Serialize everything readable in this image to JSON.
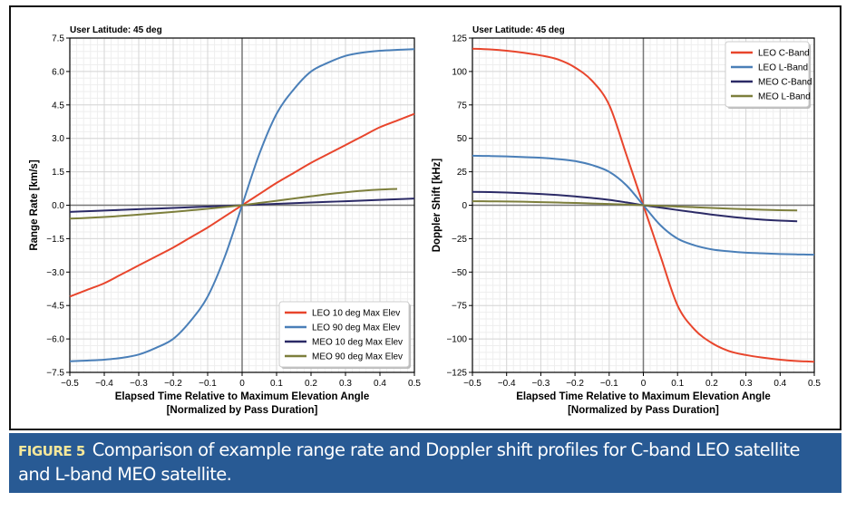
{
  "chart_data": [
    {
      "type": "line",
      "title": "User Latitude: 45 deg",
      "xlabel": "Elapsed Time Relative to Maximum Elevation Angle",
      "xlabel2": "[Normalized by Pass Duration]",
      "ylabel": "Range Rate [km/s]",
      "xlim": [
        -0.5,
        0.5
      ],
      "ylim": [
        -7.5,
        7.5
      ],
      "xticks": [
        "−0.5",
        "−0.4",
        "−0.3",
        "−0.2",
        "−0.1",
        "0",
        "0.1",
        "0.2",
        "0.3",
        "0.4",
        "0.5"
      ],
      "yticks": [
        "7.5",
        "6.0",
        "4.5",
        "3.0",
        "1.5",
        "0.0",
        "−1.5",
        "−3.0",
        "−4.5",
        "−6.0",
        "−7.5"
      ],
      "grid": true,
      "legend_position": "bottom-right",
      "x": [
        -0.5,
        -0.45,
        -0.4,
        -0.35,
        -0.3,
        -0.25,
        -0.2,
        -0.15,
        -0.1,
        -0.05,
        0,
        0.05,
        0.1,
        0.15,
        0.2,
        0.25,
        0.3,
        0.35,
        0.4,
        0.45,
        0.5
      ],
      "series": [
        {
          "name": "LEO  10 deg Max Elev",
          "color": "#e8452c",
          "values": [
            -4.1,
            -3.8,
            -3.5,
            -3.1,
            -2.7,
            -2.3,
            -1.9,
            -1.45,
            -1.0,
            -0.5,
            0,
            0.5,
            1.0,
            1.45,
            1.9,
            2.3,
            2.7,
            3.1,
            3.5,
            3.8,
            4.1
          ]
        },
        {
          "name": "LEO  90 deg Max Elev",
          "color": "#4a7fb8",
          "values": [
            -7.0,
            -6.97,
            -6.93,
            -6.85,
            -6.7,
            -6.4,
            -6.0,
            -5.2,
            -4.1,
            -2.3,
            0,
            2.3,
            4.1,
            5.2,
            6.0,
            6.4,
            6.7,
            6.85,
            6.93,
            6.97,
            7.0
          ]
        },
        {
          "name": "MEO 10 deg Max Elev",
          "color": "#2b2a66",
          "values": [
            -0.3,
            -0.27,
            -0.24,
            -0.21,
            -0.18,
            -0.15,
            -0.12,
            -0.09,
            -0.06,
            -0.03,
            0,
            0.03,
            0.06,
            0.09,
            0.12,
            0.15,
            0.18,
            0.21,
            0.24,
            0.27,
            0.3
          ]
        },
        {
          "name": "MEO 90 deg Max Elev",
          "color": "#7d7f3c",
          "values": [
            -0.6,
            -0.57,
            -0.53,
            -0.48,
            -0.42,
            -0.36,
            -0.3,
            -0.23,
            -0.16,
            -0.08,
            0,
            0.1,
            0.2,
            0.3,
            0.4,
            0.5,
            0.58,
            0.65,
            0.7,
            0.73,
            null
          ]
        }
      ]
    },
    {
      "type": "line",
      "title": "User Latitude: 45 deg",
      "xlabel": "Elapsed Time Relative to Maximum Elevation Angle",
      "xlabel2": "[Normalized by Pass Duration]",
      "ylabel": "Doppler Shift [kHz]",
      "xlim": [
        -0.5,
        0.5
      ],
      "ylim": [
        -125,
        125
      ],
      "xticks": [
        "−0.5",
        "−0.4",
        "−0.3",
        "−0.2",
        "−0.1",
        "0",
        "0.1",
        "0.2",
        "0.3",
        "0.4",
        "0.5"
      ],
      "yticks": [
        "125",
        "100",
        "75",
        "50",
        "25",
        "0",
        "−25",
        "−50",
        "−75",
        "−100",
        "−125"
      ],
      "grid": true,
      "legend_position": "top-right",
      "x": [
        -0.5,
        -0.45,
        -0.4,
        -0.35,
        -0.3,
        -0.25,
        -0.2,
        -0.15,
        -0.1,
        -0.05,
        0,
        0.05,
        0.1,
        0.15,
        0.2,
        0.25,
        0.3,
        0.35,
        0.4,
        0.45,
        0.5
      ],
      "series": [
        {
          "name": "LEO C-Band",
          "color": "#e8452c",
          "values": [
            117,
            116.5,
            115.5,
            114,
            112,
            109,
            103,
            93,
            75,
            38,
            0,
            -38,
            -75,
            -93,
            -103,
            -109,
            -112,
            -114,
            -115.5,
            -116.5,
            -117
          ]
        },
        {
          "name": "LEO L-Band",
          "color": "#4a7fb8",
          "values": [
            37,
            36.8,
            36.5,
            36,
            35.5,
            34.5,
            33,
            30,
            25,
            15,
            0,
            -15,
            -25,
            -30,
            -33,
            -34.5,
            -35.5,
            -36,
            -36.5,
            -36.8,
            -37
          ]
        },
        {
          "name": "MEO C-Band",
          "color": "#2b2a66",
          "values": [
            10,
            9.8,
            9.5,
            9,
            8.4,
            7.6,
            6.6,
            5.4,
            4,
            2.1,
            0,
            -1.8,
            -3.6,
            -5.3,
            -7,
            -8.5,
            -9.8,
            -10.8,
            -11.5,
            -12,
            null
          ]
        },
        {
          "name": "MEO L-Band",
          "color": "#7d7f3c",
          "values": [
            3,
            2.9,
            2.8,
            2.6,
            2.3,
            2,
            1.7,
            1.3,
            0.9,
            0.5,
            0,
            -0.5,
            -1,
            -1.5,
            -2,
            -2.5,
            -3,
            -3.4,
            -3.7,
            -3.9,
            null
          ]
        }
      ]
    }
  ],
  "caption": {
    "label": "FIGURE 5",
    "text": "Comparison of example range rate and Doppler shift profiles for C-band LEO satellite and L-band MEO satellite."
  }
}
